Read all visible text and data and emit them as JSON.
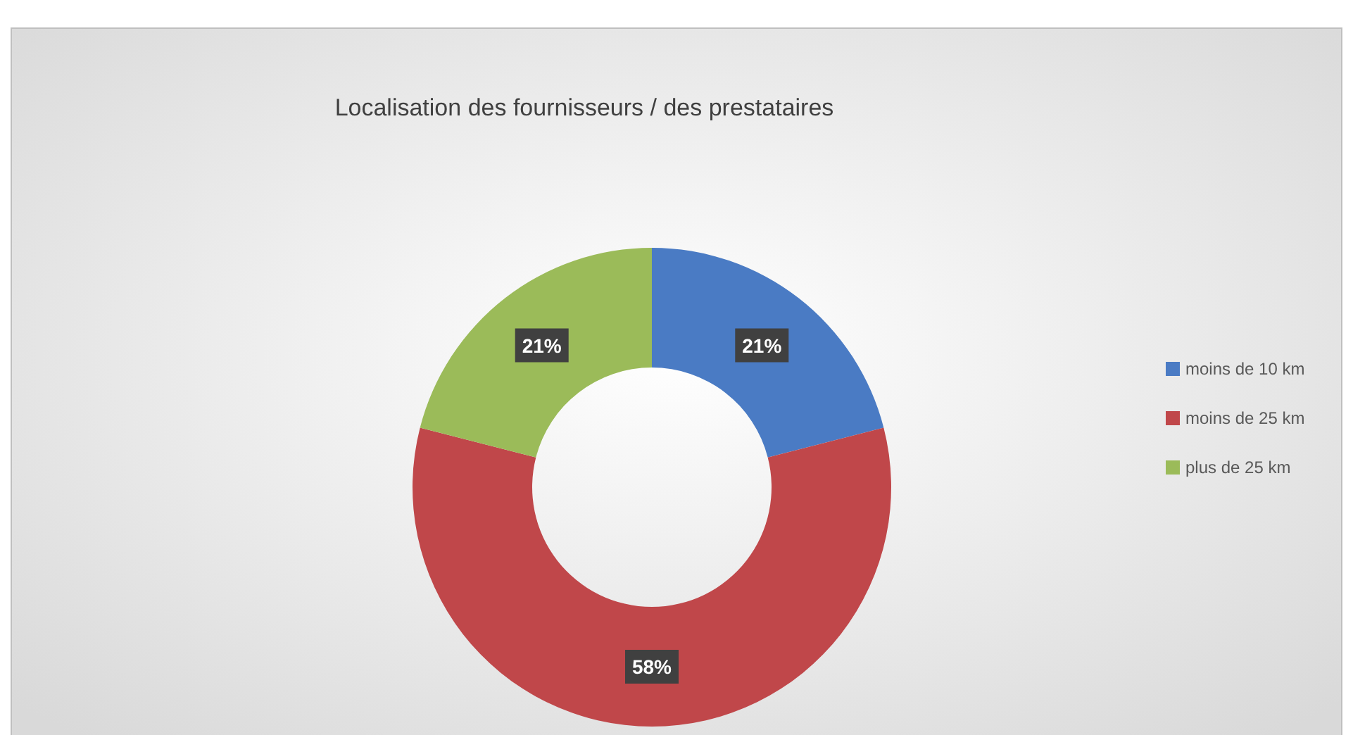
{
  "chart_data": {
    "type": "donut",
    "title": "Localisation des fournisseurs / des prestataires",
    "categories": [
      "moins de 10 km",
      "moins de 25 km",
      "plus de 25 km"
    ],
    "values": [
      21,
      58,
      21
    ],
    "colors": [
      "#4a7bc4",
      "#c0474a",
      "#9bbb59"
    ],
    "value_labels": [
      "21%",
      "58%",
      "21%"
    ],
    "legend": "right"
  }
}
